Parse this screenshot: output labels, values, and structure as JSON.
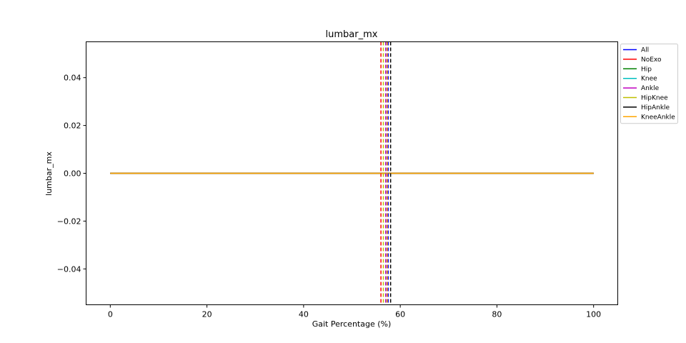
{
  "chart_data": {
    "type": "line",
    "title": "lumbar_mx",
    "xlabel": "Gait Percentage (%)",
    "ylabel": "lumbar_mx",
    "xlim": [
      -5,
      105
    ],
    "ylim": [
      -0.055,
      0.055
    ],
    "xticks": [
      0,
      20,
      40,
      60,
      80,
      100
    ],
    "yticks": [
      -0.04,
      -0.02,
      0.0,
      0.02,
      0.04
    ],
    "ytick_labels": [
      "−0.04",
      "−0.02",
      "0.00",
      "0.02",
      "0.04"
    ],
    "grid": false,
    "legend_position": "outside-top-right",
    "series": [
      {
        "name": "All",
        "color": "#0000ff",
        "x": [
          0,
          100
        ],
        "y": [
          0,
          0
        ],
        "vline": 57.5
      },
      {
        "name": "NoExo",
        "color": "#ff0000",
        "x": [
          0,
          100
        ],
        "y": [
          0,
          0
        ],
        "vline": 56.0
      },
      {
        "name": "Hip",
        "color": "#008000",
        "x": [
          0,
          100
        ],
        "y": [
          0,
          0
        ],
        "vline": 57.0
      },
      {
        "name": "Knee",
        "color": "#00bfbf",
        "x": [
          0,
          100
        ],
        "y": [
          0,
          0
        ],
        "vline": 57.0
      },
      {
        "name": "Ankle",
        "color": "#bf00bf",
        "x": [
          0,
          100
        ],
        "y": [
          0,
          0
        ],
        "vline": 57.0
      },
      {
        "name": "HipKnee",
        "color": "#bfbf00",
        "x": [
          0,
          100
        ],
        "y": [
          0,
          0
        ],
        "vline": 56.5
      },
      {
        "name": "HipAnkle",
        "color": "#000000",
        "x": [
          0,
          100
        ],
        "y": [
          0,
          0
        ],
        "vline": 58.0
      },
      {
        "name": "KneeAnkle",
        "color": "#ffa500",
        "x": [
          0,
          100
        ],
        "y": [
          0,
          0
        ],
        "vline": 57.3
      }
    ]
  }
}
